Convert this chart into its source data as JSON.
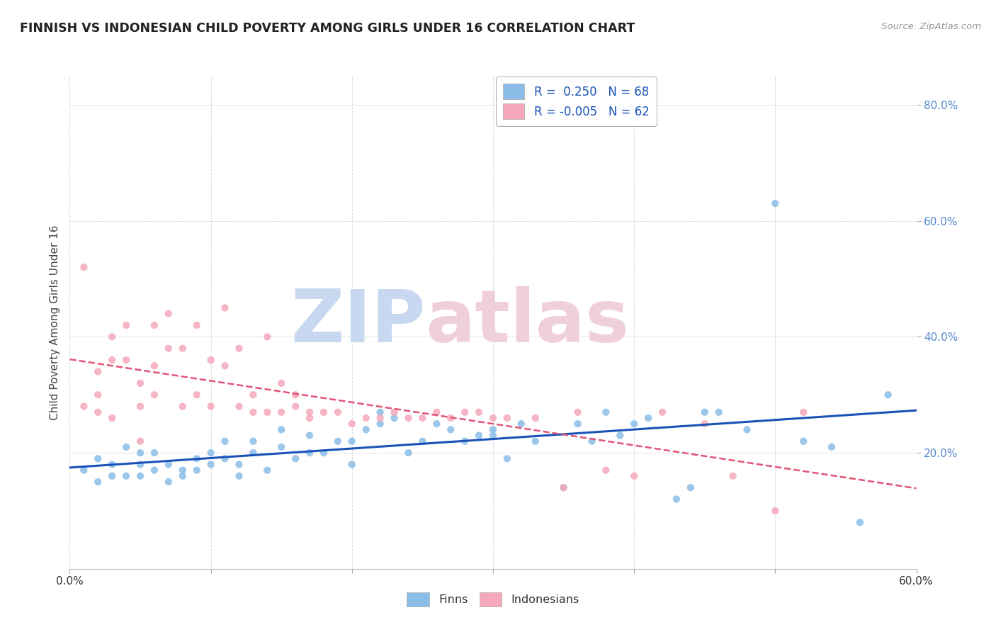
{
  "title": "FINNISH VS INDONESIAN CHILD POVERTY AMONG GIRLS UNDER 16 CORRELATION CHART",
  "source": "Source: ZipAtlas.com",
  "ylabel": "Child Poverty Among Girls Under 16",
  "ytick_labels": [
    "20.0%",
    "40.0%",
    "60.0%",
    "80.0%"
  ],
  "ytick_values": [
    0.2,
    0.4,
    0.6,
    0.8
  ],
  "xlim": [
    0.0,
    0.6
  ],
  "ylim": [
    0.0,
    0.85
  ],
  "legend_finn": "R =  0.250   N = 68",
  "legend_indo": "R = -0.005   N = 62",
  "finn_color": "#8abde8",
  "indo_color": "#f5a8bb",
  "finn_line_color": "#1a52b8",
  "indo_line_color": "#e05575",
  "watermark_zip_color": "#c8d8f0",
  "watermark_atlas_color": "#f0d0d8",
  "background_color": "#ffffff",
  "grid_color": "#d0d0d0",
  "tick_color": "#999999",
  "ytick_color": "#5588cc",
  "title_color": "#222222",
  "source_color": "#999999",
  "finn_scatter_x": [
    0.01,
    0.02,
    0.02,
    0.03,
    0.03,
    0.04,
    0.04,
    0.05,
    0.05,
    0.05,
    0.06,
    0.06,
    0.07,
    0.07,
    0.08,
    0.08,
    0.09,
    0.09,
    0.1,
    0.1,
    0.11,
    0.11,
    0.12,
    0.12,
    0.13,
    0.13,
    0.14,
    0.15,
    0.15,
    0.16,
    0.17,
    0.17,
    0.18,
    0.19,
    0.2,
    0.2,
    0.21,
    0.22,
    0.22,
    0.23,
    0.24,
    0.25,
    0.26,
    0.27,
    0.28,
    0.29,
    0.3,
    0.3,
    0.31,
    0.32,
    0.33,
    0.35,
    0.36,
    0.37,
    0.38,
    0.39,
    0.4,
    0.41,
    0.43,
    0.44,
    0.45,
    0.46,
    0.48,
    0.5,
    0.52,
    0.54,
    0.56,
    0.58
  ],
  "finn_scatter_y": [
    0.17,
    0.15,
    0.19,
    0.16,
    0.18,
    0.16,
    0.21,
    0.18,
    0.16,
    0.2,
    0.17,
    0.2,
    0.15,
    0.18,
    0.16,
    0.17,
    0.17,
    0.19,
    0.18,
    0.2,
    0.19,
    0.22,
    0.18,
    0.16,
    0.2,
    0.22,
    0.17,
    0.21,
    0.24,
    0.19,
    0.23,
    0.2,
    0.2,
    0.22,
    0.18,
    0.22,
    0.24,
    0.27,
    0.25,
    0.26,
    0.2,
    0.22,
    0.25,
    0.24,
    0.22,
    0.23,
    0.23,
    0.24,
    0.19,
    0.25,
    0.22,
    0.14,
    0.25,
    0.22,
    0.27,
    0.23,
    0.25,
    0.26,
    0.12,
    0.14,
    0.27,
    0.27,
    0.24,
    0.63,
    0.22,
    0.21,
    0.08,
    0.3
  ],
  "indo_scatter_x": [
    0.01,
    0.01,
    0.02,
    0.02,
    0.02,
    0.03,
    0.03,
    0.03,
    0.04,
    0.04,
    0.05,
    0.05,
    0.05,
    0.06,
    0.06,
    0.06,
    0.07,
    0.07,
    0.08,
    0.08,
    0.09,
    0.09,
    0.1,
    0.1,
    0.11,
    0.11,
    0.12,
    0.12,
    0.13,
    0.13,
    0.14,
    0.14,
    0.15,
    0.15,
    0.16,
    0.16,
    0.17,
    0.17,
    0.18,
    0.19,
    0.2,
    0.21,
    0.22,
    0.23,
    0.24,
    0.25,
    0.26,
    0.27,
    0.28,
    0.29,
    0.3,
    0.31,
    0.33,
    0.35,
    0.36,
    0.38,
    0.4,
    0.42,
    0.45,
    0.47,
    0.5,
    0.52
  ],
  "indo_scatter_y": [
    0.52,
    0.28,
    0.3,
    0.34,
    0.27,
    0.36,
    0.4,
    0.26,
    0.42,
    0.36,
    0.28,
    0.32,
    0.22,
    0.35,
    0.3,
    0.42,
    0.38,
    0.44,
    0.38,
    0.28,
    0.3,
    0.42,
    0.28,
    0.36,
    0.35,
    0.45,
    0.38,
    0.28,
    0.27,
    0.3,
    0.4,
    0.27,
    0.27,
    0.32,
    0.3,
    0.28,
    0.27,
    0.26,
    0.27,
    0.27,
    0.25,
    0.26,
    0.26,
    0.27,
    0.26,
    0.26,
    0.27,
    0.26,
    0.27,
    0.27,
    0.26,
    0.26,
    0.26,
    0.14,
    0.27,
    0.17,
    0.16,
    0.27,
    0.25,
    0.16,
    0.1,
    0.27
  ]
}
